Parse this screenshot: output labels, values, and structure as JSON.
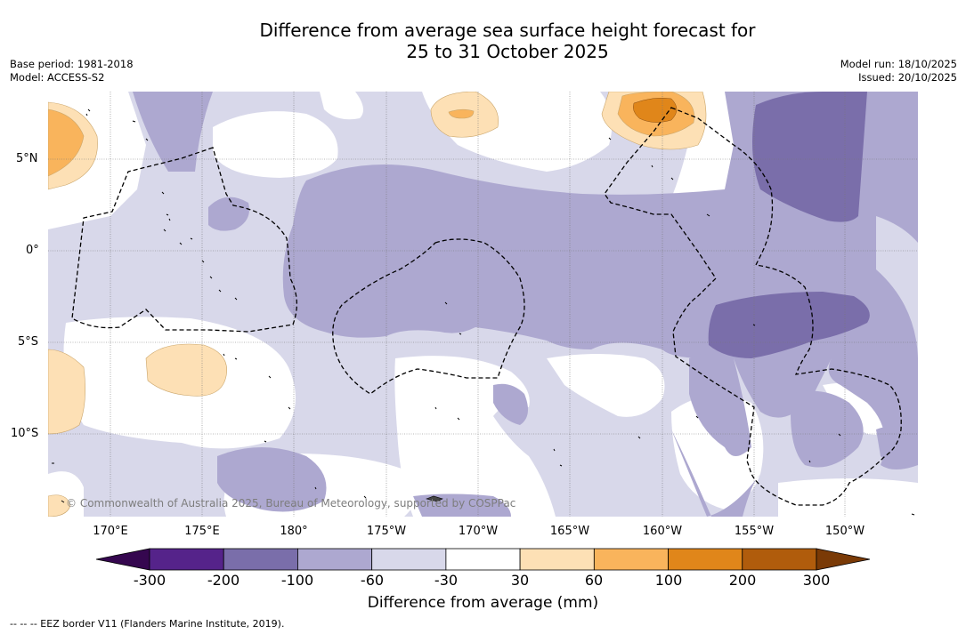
{
  "title": {
    "line1": "Difference from average sea surface height forecast for",
    "line2": "25 to 31 October 2025"
  },
  "meta_left": {
    "base_period": "Base period: 1981-2018",
    "model": "Model: ACCESS-S2"
  },
  "meta_right": {
    "model_run": "Model run: 18/10/2025",
    "issued": "Issued: 20/10/2025"
  },
  "map": {
    "latitude_labels": [
      "5°N",
      "0°",
      "5°S",
      "10°S"
    ],
    "longitude_labels": [
      "170°E",
      "175°E",
      "180°",
      "175°W",
      "170°W",
      "165°W",
      "160°W",
      "155°W",
      "150°W"
    ],
    "copyright": "© Commonwealth of Australia 2025, Bureau of Meteorology, supported by COSPPac"
  },
  "colorbar": {
    "ticks": [
      "-300",
      "-200",
      "-100",
      "-60",
      "-30",
      "30",
      "60",
      "100",
      "200",
      "300"
    ],
    "colors": [
      "#35074f",
      "#55238a",
      "#7a6eaa",
      "#ada8d0",
      "#d8d8ea",
      "#ffffff",
      "#fde0b5",
      "#f9b45c",
      "#e0861a",
      "#b05c0c",
      "#7a3a06"
    ],
    "label": "Difference from average (mm)"
  },
  "footnote": "--  --  -- EEZ border V11 (Flanders Marine Institute, 2019).",
  "chart_data": {
    "type": "heatmap",
    "title": "Difference from average sea surface height forecast for 25 to 31 October 2025",
    "units": "mm",
    "contour_levels": [
      -300,
      -200,
      -100,
      -60,
      -30,
      30,
      60,
      100,
      200,
      300
    ],
    "lon_ticks": [
      "170°E",
      "175°E",
      "180°",
      "175°W",
      "170°W",
      "165°W",
      "160°W",
      "155°W",
      "150°W"
    ],
    "lat_ticks": [
      "5°N",
      "0°",
      "5°S",
      "10°S"
    ],
    "grid": true
  }
}
